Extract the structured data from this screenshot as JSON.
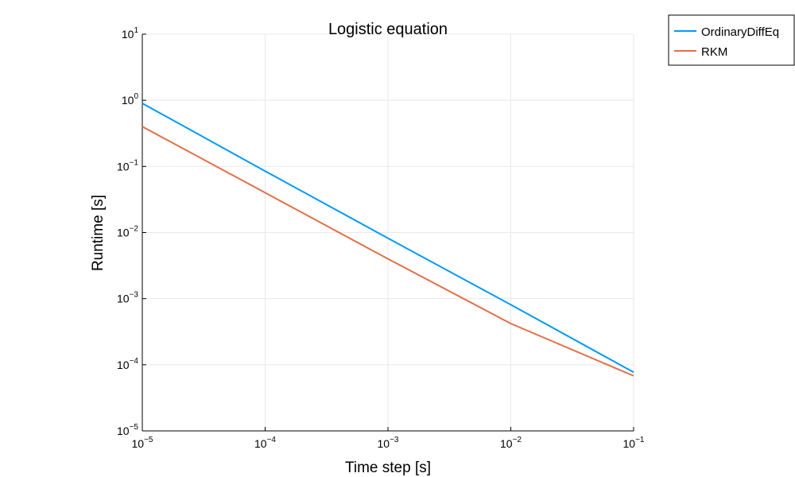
{
  "chart_data": {
    "type": "line",
    "title": "Logistic equation",
    "xlabel": "Time step [s]",
    "ylabel": "Runtime [s]",
    "xscale": "log",
    "yscale": "log",
    "xlim": [
      1e-05,
      0.1
    ],
    "ylim": [
      1e-05,
      10
    ],
    "x_ticks": [
      {
        "base": "10",
        "exp": "−5"
      },
      {
        "base": "10",
        "exp": "−4"
      },
      {
        "base": "10",
        "exp": "−3"
      },
      {
        "base": "10",
        "exp": "−2"
      },
      {
        "base": "10",
        "exp": "−1"
      }
    ],
    "y_ticks": [
      {
        "base": "10",
        "exp": "−5"
      },
      {
        "base": "10",
        "exp": "−4"
      },
      {
        "base": "10",
        "exp": "−3"
      },
      {
        "base": "10",
        "exp": "−2"
      },
      {
        "base": "10",
        "exp": "−1"
      },
      {
        "base": "10",
        "exp": "0"
      },
      {
        "base": "10",
        "exp": "1"
      }
    ],
    "grid": true,
    "legend_position": "outside-top-right",
    "series": [
      {
        "name": "OrdinaryDiffEq",
        "color": "#009af9",
        "x": [
          1e-05,
          0.0001,
          0.001,
          0.01,
          0.1
        ],
        "y": [
          0.9,
          0.085,
          0.0082,
          0.00081,
          7.7e-05
        ]
      },
      {
        "name": "RKM",
        "color": "#e26f46",
        "x": [
          1e-05,
          0.0001,
          0.001,
          0.01,
          0.1
        ],
        "y": [
          0.4,
          0.04,
          0.004,
          0.00042,
          6.8e-05
        ]
      }
    ]
  }
}
